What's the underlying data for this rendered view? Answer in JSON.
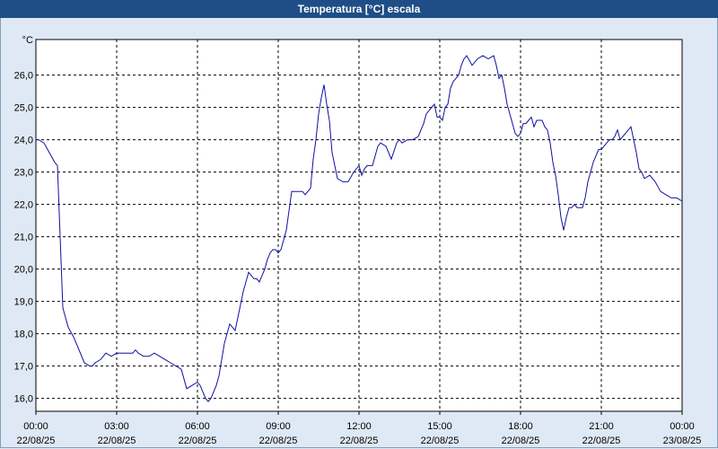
{
  "window": {
    "title": "Temperatura [°C] escala"
  },
  "colors": {
    "titlebar": "#1f4e86",
    "background": "#dfe9f5",
    "plot_bg": "#ffffff",
    "line": "#1010a0",
    "grid": "#000000"
  },
  "chart_data": {
    "type": "line",
    "title": "Temperatura [°C] escala",
    "ylabel": "°C",
    "xlabel": "",
    "ylim": [
      15.6,
      27.1
    ],
    "xlim_hours": [
      0,
      24
    ],
    "grid": true,
    "yticks": [
      16.0,
      17.0,
      18.0,
      19.0,
      20.0,
      21.0,
      22.0,
      23.0,
      24.0,
      25.0,
      26.0
    ],
    "ytick_labels": [
      "16,0",
      "17,0",
      "18,0",
      "19,0",
      "20,0",
      "21,0",
      "22,0",
      "23,0",
      "24,0",
      "25,0",
      "26,0"
    ],
    "xticks": [
      {
        "hour": 0,
        "time": "00:00",
        "date": "22/08/25"
      },
      {
        "hour": 3,
        "time": "03:00",
        "date": "22/08/25"
      },
      {
        "hour": 6,
        "time": "06:00",
        "date": "22/08/25"
      },
      {
        "hour": 9,
        "time": "09:00",
        "date": "22/08/25"
      },
      {
        "hour": 12,
        "time": "12:00",
        "date": "22/08/25"
      },
      {
        "hour": 15,
        "time": "15:00",
        "date": "22/08/25"
      },
      {
        "hour": 18,
        "time": "18:00",
        "date": "22/08/25"
      },
      {
        "hour": 21,
        "time": "21:00",
        "date": "22/08/25"
      },
      {
        "hour": 24,
        "time": "00:00",
        "date": "23/08/25"
      }
    ],
    "series": [
      {
        "x": [
          0.0,
          0.1,
          0.3,
          0.5,
          0.7,
          0.8,
          0.9,
          1.0,
          1.1,
          1.2,
          1.4,
          1.6,
          1.8,
          2.0,
          2.1,
          2.2,
          2.4,
          2.6,
          2.8,
          3.0,
          3.2,
          3.4,
          3.6,
          3.7,
          3.8,
          4.0,
          4.2,
          4.4,
          4.6,
          4.8,
          5.0,
          5.2,
          5.4,
          5.6,
          5.8,
          6.0,
          6.1,
          6.2,
          6.3,
          6.4,
          6.5,
          6.6,
          6.7,
          6.8,
          6.9,
          7.0,
          7.1,
          7.2,
          7.3,
          7.4,
          7.5,
          7.6,
          7.7,
          7.8,
          7.9,
          8.0,
          8.1,
          8.2,
          8.3,
          8.4,
          8.5,
          8.6,
          8.7,
          8.8,
          8.9,
          9.0,
          9.1,
          9.2,
          9.3,
          9.4,
          9.5,
          9.6,
          9.7,
          9.8,
          9.9,
          10.0,
          10.1,
          10.2,
          10.3,
          10.4,
          10.5,
          10.6,
          10.7,
          10.8,
          10.9,
          11.0,
          11.2,
          11.4,
          11.6,
          11.8,
          12.0,
          12.1,
          12.2,
          12.3,
          12.4,
          12.5,
          12.6,
          12.7,
          12.8,
          13.0,
          13.2,
          13.4,
          13.5,
          13.6,
          13.8,
          14.0,
          14.2,
          14.4,
          14.5,
          14.6,
          14.8,
          14.9,
          15.0,
          15.1,
          15.2,
          15.3,
          15.4,
          15.5,
          15.6,
          15.7,
          15.8,
          15.9,
          16.0,
          16.2,
          16.4,
          16.6,
          16.8,
          17.0,
          17.1,
          17.2,
          17.3,
          17.4,
          17.5,
          17.6,
          17.7,
          17.8,
          17.9,
          18.0,
          18.1,
          18.2,
          18.3,
          18.4,
          18.5,
          18.6,
          18.7,
          18.8,
          18.9,
          19.0,
          19.1,
          19.2,
          19.3,
          19.4,
          19.5,
          19.6,
          19.7,
          19.8,
          19.9,
          20.0,
          20.1,
          20.2,
          20.3,
          20.4,
          20.5,
          20.6,
          20.7,
          20.8,
          20.9,
          21.0,
          21.1,
          21.2,
          21.3,
          21.4,
          21.5,
          21.6,
          21.7,
          21.8,
          21.9,
          22.0,
          22.1,
          22.2,
          22.3,
          22.4,
          22.5,
          22.6,
          22.8,
          23.0,
          23.2,
          23.4,
          23.6,
          23.8,
          24.0
        ],
        "values": [
          24.0,
          24.0,
          23.9,
          23.6,
          23.3,
          23.2,
          21.0,
          18.8,
          18.5,
          18.2,
          17.9,
          17.5,
          17.1,
          17.0,
          17.0,
          17.1,
          17.2,
          17.4,
          17.3,
          17.4,
          17.4,
          17.4,
          17.4,
          17.5,
          17.4,
          17.3,
          17.3,
          17.4,
          17.3,
          17.2,
          17.1,
          17.0,
          16.9,
          16.3,
          16.4,
          16.5,
          16.4,
          16.2,
          16.0,
          15.9,
          16.0,
          16.2,
          16.4,
          16.7,
          17.2,
          17.7,
          18.0,
          18.3,
          18.2,
          18.1,
          18.5,
          18.9,
          19.3,
          19.6,
          19.9,
          19.8,
          19.7,
          19.7,
          19.6,
          19.8,
          20.0,
          20.3,
          20.5,
          20.6,
          20.6,
          20.5,
          20.6,
          20.9,
          21.2,
          21.8,
          22.4,
          22.4,
          22.4,
          22.4,
          22.4,
          22.3,
          22.4,
          22.5,
          23.4,
          24.0,
          24.8,
          25.3,
          25.7,
          25.1,
          24.6,
          23.6,
          22.8,
          22.7,
          22.7,
          23.0,
          23.2,
          22.9,
          23.1,
          23.2,
          23.2,
          23.2,
          23.5,
          23.8,
          23.9,
          23.8,
          23.4,
          23.9,
          24.0,
          23.9,
          24.0,
          24.0,
          24.1,
          24.5,
          24.8,
          24.9,
          25.1,
          24.7,
          24.7,
          24.6,
          25.0,
          25.1,
          25.6,
          25.8,
          25.9,
          26.0,
          26.3,
          26.5,
          26.6,
          26.3,
          26.5,
          26.6,
          26.5,
          26.6,
          26.3,
          25.9,
          26.0,
          25.6,
          25.1,
          24.8,
          24.5,
          24.2,
          24.1,
          24.2,
          24.5,
          24.5,
          24.6,
          24.7,
          24.4,
          24.6,
          24.6,
          24.6,
          24.4,
          24.3,
          23.9,
          23.3,
          22.9,
          22.3,
          21.6,
          21.2,
          21.6,
          21.9,
          21.9,
          22.0,
          21.9,
          21.9,
          21.9,
          22.2,
          22.7,
          23.0,
          23.3,
          23.5,
          23.7,
          23.7,
          23.8,
          23.9,
          24.0,
          24.0,
          24.1,
          24.3,
          24.0,
          24.1,
          24.2,
          24.3,
          24.4,
          24.0,
          23.6,
          23.1,
          23.0,
          22.8,
          22.9,
          22.7,
          22.4,
          22.3,
          22.2,
          22.2,
          22.1
        ]
      }
    ]
  }
}
